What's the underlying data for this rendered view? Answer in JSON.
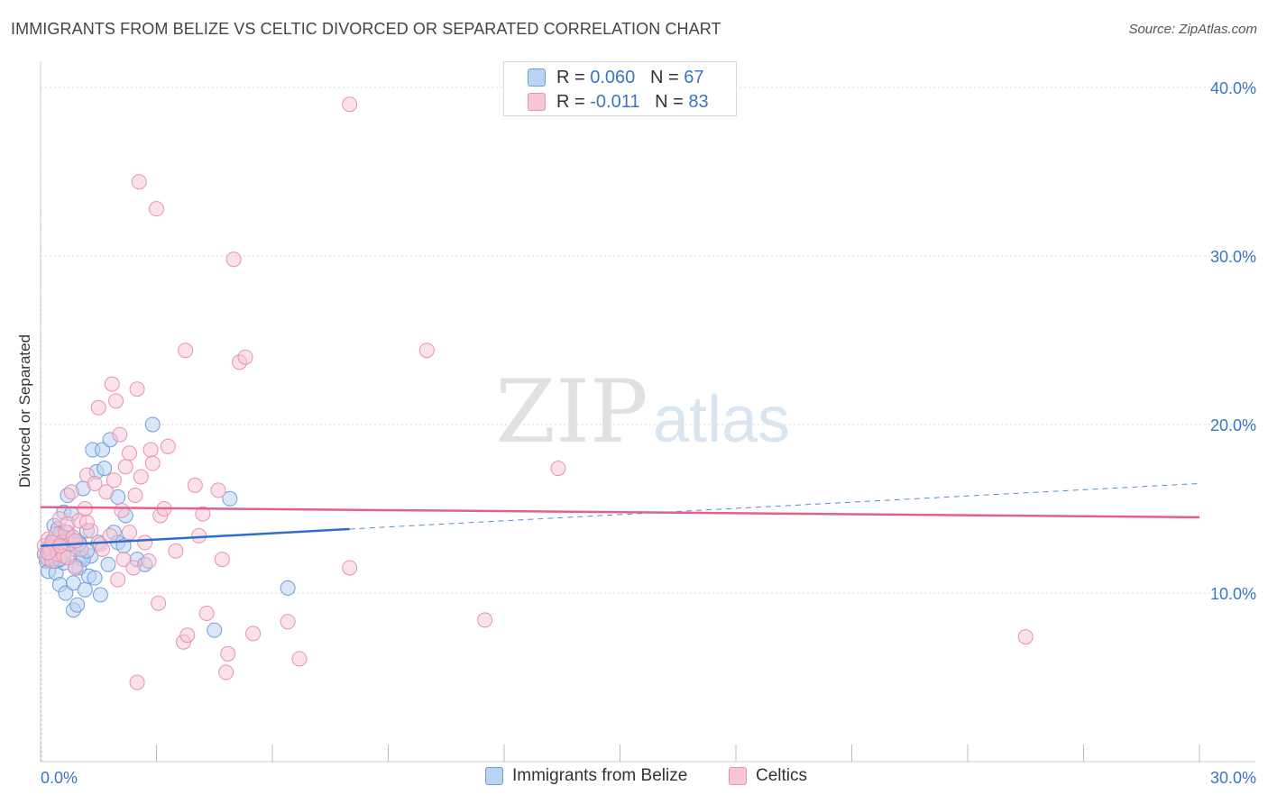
{
  "title": "IMMIGRANTS FROM BELIZE VS CELTIC DIVORCED OR SEPARATED CORRELATION CHART",
  "source": "Source: ZipAtlas.com",
  "watermark": {
    "zip": "ZIP",
    "atlas": "atlas"
  },
  "colors": {
    "blue_fill": "#b9d3f3",
    "blue_stroke": "#6f9fd8",
    "blue_line": "#2e6fca",
    "pink_fill": "#f7c6d6",
    "pink_stroke": "#e892ae",
    "pink_line": "#e4608c",
    "axis_label": "#3a75c4",
    "grid": "#d9d9d9"
  },
  "legend": {
    "rows": [
      {
        "r_label": "R = ",
        "r_value": "0.060",
        "n_label": "N = ",
        "n_value": "67"
      },
      {
        "r_label": "R = ",
        "r_value": "-0.011",
        "n_label": "N = ",
        "n_value": "83"
      }
    ]
  },
  "bottom_legend": [
    "Immigrants from Belize",
    "Celtics"
  ],
  "chart_data": {
    "type": "scatter",
    "title": "IMMIGRANTS FROM BELIZE VS CELTIC DIVORCED OR SEPARATED CORRELATION CHART",
    "xlabel": "",
    "ylabel": "Divorced or Separated",
    "xlim": [
      0,
      30
    ],
    "ylim": [
      0,
      40
    ],
    "x_tick_labels": [
      "0.0%",
      "30.0%"
    ],
    "y_ticks": [
      10,
      20,
      30,
      40
    ],
    "y_tick_labels": [
      "10.0%",
      "20.0%",
      "30.0%",
      "40.0%"
    ],
    "grid": true,
    "series": [
      {
        "name": "Immigrants from Belize",
        "R": 0.06,
        "N": 67,
        "trend": {
          "x0": 0,
          "y0": 12.8,
          "x1": 8,
          "y1": 13.8,
          "dashed_to_x": 30,
          "dashed_to_y": 16.5
        },
        "points": [
          [
            0.1,
            12.3
          ],
          [
            0.15,
            11.9
          ],
          [
            0.2,
            12.6
          ],
          [
            0.2,
            11.3
          ],
          [
            0.25,
            12.2
          ],
          [
            0.3,
            13.1
          ],
          [
            0.3,
            12.0
          ],
          [
            0.35,
            14.0
          ],
          [
            0.4,
            11.2
          ],
          [
            0.4,
            12.7
          ],
          [
            0.45,
            13.8
          ],
          [
            0.5,
            12.1
          ],
          [
            0.5,
            10.5
          ],
          [
            0.55,
            13.4
          ],
          [
            0.6,
            14.8
          ],
          [
            0.6,
            11.8
          ],
          [
            0.65,
            10.0
          ],
          [
            0.7,
            12.9
          ],
          [
            0.7,
            15.8
          ],
          [
            0.75,
            13.2
          ],
          [
            0.8,
            14.7
          ],
          [
            0.85,
            9.0
          ],
          [
            0.85,
            10.6
          ],
          [
            0.9,
            12.6
          ],
          [
            0.95,
            9.3
          ],
          [
            1.0,
            13.0
          ],
          [
            1.0,
            11.5
          ],
          [
            1.05,
            12.1
          ],
          [
            1.1,
            16.2
          ],
          [
            1.15,
            10.2
          ],
          [
            1.2,
            13.7
          ],
          [
            1.25,
            11.0
          ],
          [
            1.3,
            12.2
          ],
          [
            1.35,
            18.5
          ],
          [
            1.4,
            10.9
          ],
          [
            1.45,
            17.2
          ],
          [
            1.5,
            13.0
          ],
          [
            1.55,
            9.9
          ],
          [
            1.6,
            18.5
          ],
          [
            1.65,
            17.4
          ],
          [
            1.75,
            11.7
          ],
          [
            1.8,
            19.1
          ],
          [
            1.9,
            13.6
          ],
          [
            2.0,
            13.0
          ],
          [
            2.0,
            15.7
          ],
          [
            2.15,
            12.8
          ],
          [
            2.2,
            14.6
          ],
          [
            2.5,
            12.0
          ],
          [
            2.7,
            11.7
          ],
          [
            2.9,
            20.0
          ],
          [
            4.5,
            7.8
          ],
          [
            4.9,
            15.6
          ],
          [
            6.4,
            10.3
          ],
          [
            0.3,
            12.2
          ],
          [
            0.5,
            13.5
          ],
          [
            0.2,
            12.0
          ],
          [
            0.8,
            13.2
          ],
          [
            1.1,
            12.0
          ],
          [
            0.4,
            11.9
          ],
          [
            0.6,
            12.4
          ],
          [
            0.3,
            12.7
          ],
          [
            0.9,
            11.6
          ],
          [
            1.2,
            12.5
          ],
          [
            0.5,
            12.0
          ],
          [
            0.7,
            13.6
          ],
          [
            0.25,
            12.8
          ],
          [
            1.0,
            12.9
          ]
        ]
      },
      {
        "name": "Celtics",
        "R": -0.011,
        "N": 83,
        "trend": {
          "x0": 0,
          "y0": 15.1,
          "x1": 30,
          "y1": 14.5
        },
        "points": [
          [
            0.1,
            12.8
          ],
          [
            0.15,
            12.1
          ],
          [
            0.2,
            13.2
          ],
          [
            0.25,
            12.6
          ],
          [
            0.3,
            11.9
          ],
          [
            0.35,
            12.9
          ],
          [
            0.4,
            13.5
          ],
          [
            0.45,
            12.3
          ],
          [
            0.5,
            14.4
          ],
          [
            0.55,
            13.0
          ],
          [
            0.6,
            12.2
          ],
          [
            0.65,
            13.6
          ],
          [
            0.7,
            14.1
          ],
          [
            0.75,
            12.9
          ],
          [
            0.8,
            16.0
          ],
          [
            0.85,
            13.3
          ],
          [
            0.9,
            11.5
          ],
          [
            1.0,
            14.3
          ],
          [
            1.05,
            12.6
          ],
          [
            1.15,
            15.0
          ],
          [
            1.2,
            17.0
          ],
          [
            1.3,
            13.7
          ],
          [
            1.4,
            16.5
          ],
          [
            1.5,
            21.0
          ],
          [
            1.55,
            12.9
          ],
          [
            1.7,
            16.0
          ],
          [
            1.8,
            13.4
          ],
          [
            1.85,
            22.4
          ],
          [
            1.9,
            16.7
          ],
          [
            1.95,
            21.4
          ],
          [
            2.0,
            10.8
          ],
          [
            2.05,
            19.4
          ],
          [
            2.1,
            14.9
          ],
          [
            2.15,
            12.0
          ],
          [
            2.2,
            17.5
          ],
          [
            2.3,
            18.3
          ],
          [
            2.3,
            13.6
          ],
          [
            2.4,
            11.5
          ],
          [
            2.45,
            15.8
          ],
          [
            2.5,
            22.1
          ],
          [
            2.55,
            34.4
          ],
          [
            2.6,
            16.9
          ],
          [
            2.7,
            13.0
          ],
          [
            2.8,
            11.9
          ],
          [
            2.85,
            18.5
          ],
          [
            2.9,
            17.7
          ],
          [
            3.0,
            32.8
          ],
          [
            3.05,
            9.4
          ],
          [
            3.1,
            14.6
          ],
          [
            3.2,
            15.0
          ],
          [
            3.3,
            18.7
          ],
          [
            3.5,
            12.5
          ],
          [
            3.7,
            7.1
          ],
          [
            3.75,
            24.4
          ],
          [
            3.8,
            7.5
          ],
          [
            4.0,
            16.4
          ],
          [
            4.1,
            13.4
          ],
          [
            4.2,
            14.7
          ],
          [
            4.3,
            8.8
          ],
          [
            4.6,
            16.1
          ],
          [
            4.7,
            12.0
          ],
          [
            4.8,
            5.3
          ],
          [
            4.85,
            6.4
          ],
          [
            5.0,
            29.8
          ],
          [
            5.15,
            23.7
          ],
          [
            5.3,
            24.0
          ],
          [
            5.5,
            7.6
          ],
          [
            6.4,
            8.3
          ],
          [
            6.7,
            6.1
          ],
          [
            8.0,
            39.0
          ],
          [
            8.0,
            11.5
          ],
          [
            10.0,
            24.4
          ],
          [
            11.5,
            8.4
          ],
          [
            13.4,
            17.4
          ],
          [
            25.5,
            7.4
          ],
          [
            2.5,
            4.7
          ],
          [
            0.3,
            13.0
          ],
          [
            0.5,
            12.8
          ],
          [
            0.7,
            12.1
          ],
          [
            1.2,
            14.2
          ],
          [
            0.2,
            12.4
          ],
          [
            0.9,
            13.1
          ],
          [
            1.6,
            12.6
          ]
        ]
      }
    ]
  }
}
